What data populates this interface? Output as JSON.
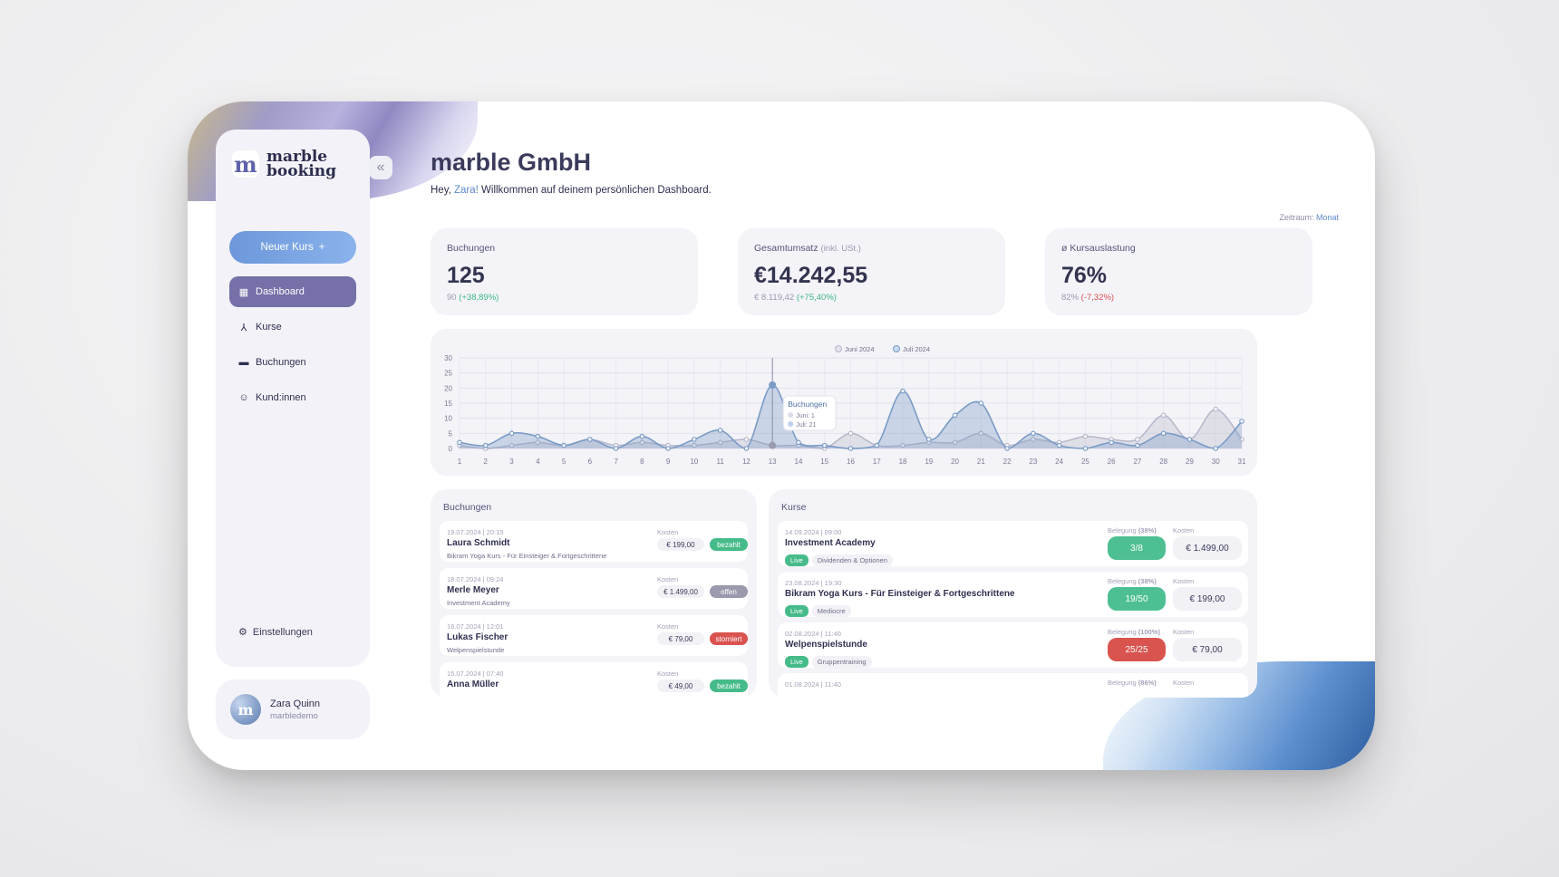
{
  "app": {
    "logo_mark": "m",
    "logo_line1": "marble",
    "logo_line2": "booking",
    "collapse_icon": "«",
    "new_course": "Neuer Kurs",
    "new_course_icon": "+"
  },
  "sidebar": {
    "items": [
      {
        "label": "Dashboard",
        "icon": "dashboard-icon",
        "glyph": "▦",
        "active": true
      },
      {
        "label": "Kurse",
        "icon": "courses-icon",
        "glyph": "⅄",
        "active": false
      },
      {
        "label": "Buchungen",
        "icon": "folder-icon",
        "glyph": "▬",
        "active": false
      },
      {
        "label": "Kund:innen",
        "icon": "users-icon",
        "glyph": "☺",
        "active": false
      }
    ],
    "settings": "Einstellungen",
    "settings_glyph": "⚙"
  },
  "user": {
    "name": "Zara Quinn",
    "handle": "marbledemo",
    "avatar_letter": "m"
  },
  "header": {
    "title": "marble GmbH",
    "greeting_pre": "Hey, ",
    "greeting_name": "Zara!",
    "greeting_post": " Willkommen auf deinem persönlichen Dashboard.",
    "period_label": "Zeitraum: ",
    "period_value": "Monat"
  },
  "kpis": [
    {
      "label": "Buchungen",
      "label_extra": "",
      "value": "125",
      "prev": "90",
      "change": "(+38,89%)",
      "trend": "pos"
    },
    {
      "label": "Gesamtumsatz",
      "label_extra": "(inkl. USt.)",
      "value": "€14.242,55",
      "prev": "€ 8.119,42",
      "change": "(+75,40%)",
      "trend": "pos"
    },
    {
      "label": "ø Kursauslastung",
      "label_extra": "",
      "value": "76%",
      "prev": "82%",
      "change": "(-7,32%)",
      "trend": "neg"
    }
  ],
  "chart_data": {
    "type": "area",
    "x": [
      1,
      2,
      3,
      4,
      5,
      6,
      7,
      8,
      9,
      10,
      11,
      12,
      13,
      14,
      15,
      16,
      17,
      18,
      19,
      20,
      21,
      22,
      23,
      24,
      25,
      26,
      27,
      28,
      29,
      30,
      31
    ],
    "ylim": [
      0,
      30
    ],
    "yticks": [
      0,
      5,
      10,
      15,
      20,
      25,
      30
    ],
    "series": [
      {
        "name": "Juni 2024",
        "color": "#b9b9cc",
        "values": [
          1,
          0,
          1,
          2,
          1,
          3,
          1,
          2,
          1,
          1,
          2,
          3,
          1,
          1,
          0,
          5,
          1,
          1,
          2,
          2,
          5,
          1,
          3,
          2,
          4,
          3,
          3,
          11,
          3,
          13,
          3
        ]
      },
      {
        "name": "Juli 2024",
        "color": "#7a9cc6",
        "values": [
          2,
          1,
          5,
          4,
          1,
          3,
          0,
          4,
          0,
          3,
          6,
          0,
          21,
          2,
          1,
          0,
          1,
          19,
          3,
          11,
          15,
          0,
          5,
          1,
          0,
          2,
          1,
          5,
          3,
          0,
          9
        ]
      }
    ],
    "tooltip": {
      "title": "Buchungen",
      "line1": "Juni: 1",
      "line2": "Juli: 21",
      "x": 13
    },
    "grid": true,
    "legend": "top-center"
  },
  "bookings": {
    "title": "Buchungen",
    "cost_label": "Kosten",
    "rows": [
      {
        "date": "19.07.2024 | 20:15",
        "name": "Laura Schmidt",
        "course": "Bikram Yoga Kurs - Für Einsteiger & Fortgeschrittene",
        "price": "€ 199,00",
        "status": "bezahlt",
        "status_type": "green"
      },
      {
        "date": "18.07.2024 | 09:24",
        "name": "Merle Meyer",
        "course": "Investment Academy",
        "price": "€ 1.499,00",
        "status": "offen",
        "status_type": "grey"
      },
      {
        "date": "16.07.2024 | 12:01",
        "name": "Lukas Fischer",
        "course": "Welpenspielstunde",
        "price": "€ 79,00",
        "status": "storniert",
        "status_type": "red"
      },
      {
        "date": "15.07.2024 | 07:40",
        "name": "Anna Müller",
        "course": "",
        "price": "€ 49,00",
        "status": "bezahlt",
        "status_type": "green"
      }
    ]
  },
  "courses": {
    "title": "Kurse",
    "cost_label": "Kosten",
    "rows": [
      {
        "date": "14.09.2024 | 09:00",
        "name": "Investment Academy",
        "live": "Live",
        "category": "Dividenden & Optionen",
        "occ_label": "Belegung",
        "occ_pct": "(38%)",
        "occupancy": "3/8",
        "occ_type": "green",
        "price": "€ 1.499,00"
      },
      {
        "date": "23.08.2024 | 19:30",
        "name": "Bikram Yoga Kurs - Für Einsteiger & Fortgeschrittene",
        "live": "Live",
        "category": "Mediocre",
        "occ_label": "Belegung",
        "occ_pct": "(38%)",
        "occupancy": "19/50",
        "occ_type": "green",
        "price": "€ 199,00"
      },
      {
        "date": "02.08.2024 | 11:40",
        "name": "Welpenspielstunde",
        "live": "Live",
        "category": "Gruppentraining",
        "occ_label": "Belegung",
        "occ_pct": "(100%)",
        "occupancy": "25/25",
        "occ_type": "red",
        "price": "€ 79,00"
      },
      {
        "date": "01.08.2024 | 11:40",
        "name": "",
        "live": "",
        "category": "",
        "occ_label": "Belegung",
        "occ_pct": "(86%)",
        "occupancy": "",
        "occ_type": "green",
        "price": ""
      }
    ]
  }
}
